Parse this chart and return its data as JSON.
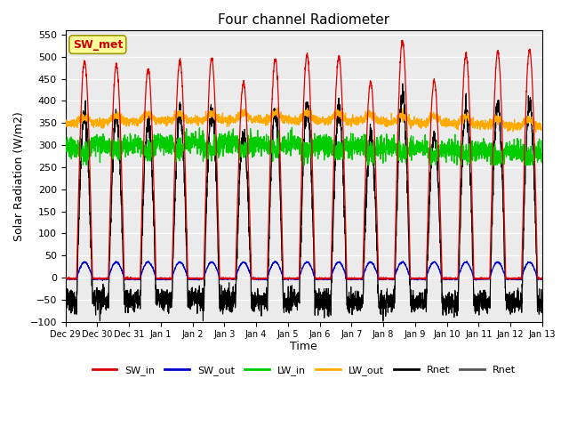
{
  "title": "Four channel Radiometer",
  "xlabel": "Time",
  "ylabel": "Solar Radiation (W/m2)",
  "ylim": [
    -100,
    560
  ],
  "yticks": [
    -100,
    -50,
    0,
    50,
    100,
    150,
    200,
    250,
    300,
    350,
    400,
    450,
    500,
    550
  ],
  "x_labels": [
    "Dec 29",
    "Dec 30",
    "Dec 31",
    "Jan 1",
    "Jan 2",
    "Jan 3",
    "Jan 4",
    "Jan 5",
    "Jan 6",
    "Jan 7",
    "Jan 8",
    "Jan 9",
    "Jan 10",
    "Jan 11",
    "Jan 12",
    "Jan 13"
  ],
  "annotation_text": "SW_met",
  "annotation_color": "#cc0000",
  "annotation_bg": "#ffff99",
  "bg_color": "#ebebeb",
  "sw_in_peaks": [
    490,
    480,
    472,
    490,
    495,
    440,
    495,
    505,
    500,
    442,
    535,
    445,
    505,
    510,
    515
  ],
  "sw_out_night": -5,
  "lw_in_base": 300,
  "lw_out_base": 345,
  "rnet_night": -30
}
